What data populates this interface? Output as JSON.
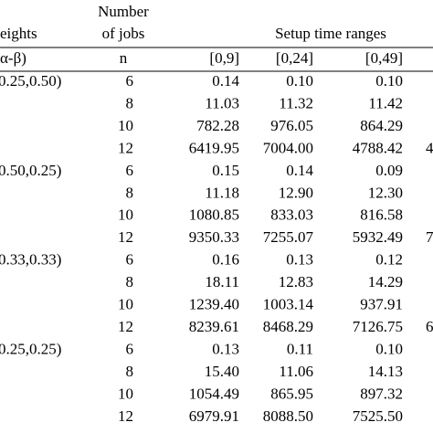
{
  "header": {
    "weights": "eights",
    "jobs_line1": "Number",
    "jobs_line2": "of jobs",
    "setup": "Setup time ranges"
  },
  "subheader": {
    "weights": "α-β)",
    "n": "n",
    "ranges": [
      "[0,9]",
      "[0,24]",
      "[0,49]"
    ]
  },
  "groups": [
    {
      "label": "0.25,0.50)",
      "rows": [
        [
          "6",
          "0.14",
          "0.10",
          "0.10"
        ],
        [
          "8",
          "11.03",
          "11.32",
          "11.42"
        ],
        [
          "10",
          "782.28",
          "976.05",
          "864.29"
        ],
        [
          "12",
          "6419.95",
          "7004.00",
          "4788.42"
        ]
      ],
      "cut": "4"
    },
    {
      "label": "0.50,0.25)",
      "rows": [
        [
          "6",
          "0.15",
          "0.14",
          "0.09"
        ],
        [
          "8",
          "11.18",
          "12.90",
          "12.30"
        ],
        [
          "10",
          "1080.85",
          "833.03",
          "816.58"
        ],
        [
          "12",
          "9350.33",
          "7255.07",
          "5932.49"
        ]
      ],
      "cut": "7"
    },
    {
      "label": "0.33,0.33)",
      "rows": [
        [
          "6",
          "0.16",
          "0.13",
          "0.12"
        ],
        [
          "8",
          "18.11",
          "12.83",
          "14.29"
        ],
        [
          "10",
          "1239.40",
          "1003.14",
          "937.91"
        ],
        [
          "12",
          "8239.61",
          "8468.29",
          "7126.75"
        ]
      ],
      "cut": "6"
    },
    {
      "label": "0.25,0.25)",
      "rows": [
        [
          "6",
          "0.13",
          "0.11",
          "0.10"
        ],
        [
          "8",
          "15.40",
          "11.06",
          "14.13"
        ],
        [
          "10",
          "1054.49",
          "865.95",
          "897.32"
        ],
        [
          "12",
          "6979.91",
          "8088.50",
          "7525.50"
        ]
      ]
    }
  ]
}
